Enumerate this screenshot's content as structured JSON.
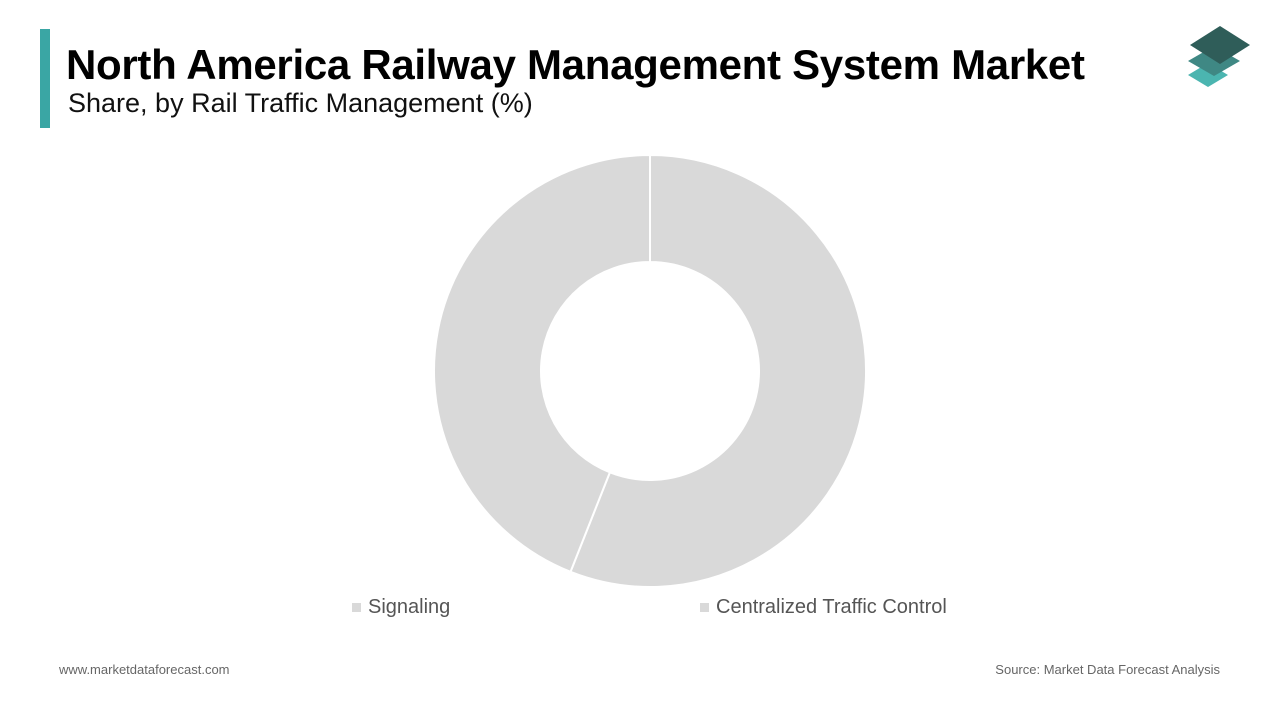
{
  "header": {
    "title": "North America Railway Management System Market",
    "subtitle": "Share, by Rail Traffic Management (%)"
  },
  "brand": {
    "accent_color": "#3aa6a4",
    "logo_icon": "stacked-layers-icon",
    "logo_colors": [
      "#2f5d59",
      "#3f8884",
      "#4bb5b0"
    ]
  },
  "chart_data": {
    "type": "pie",
    "variant": "donut",
    "categories": [
      "Signaling",
      "Centralized Traffic Control"
    ],
    "values": [
      56,
      44
    ],
    "unit": "%",
    "colors": [
      "#d9d9d9",
      "#d9d9d9"
    ],
    "legend_position": "bottom"
  },
  "footer": {
    "website": "www.marketdataforecast.com",
    "source": "Source: Market Data Forecast Analysis"
  }
}
